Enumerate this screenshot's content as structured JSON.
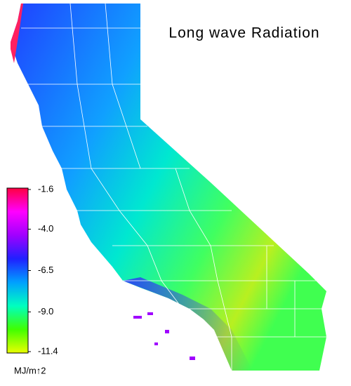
{
  "title": "Long wave Radiation",
  "colorbar": {
    "lim": [
      -11.4,
      -1.6
    ],
    "ticks": [
      -1.6,
      {
        "value": -4,
        "label": "-4.0"
      },
      -6.5,
      {
        "value": -9,
        "label": "-9.0"
      },
      -11.4
    ],
    "colors": [
      "#e8ff00",
      "#40ff00",
      "#00ffc0",
      "#00a0ff",
      "#2020ff",
      "#a000ff",
      "#ff00ff",
      "#ff0040"
    ],
    "unit": "MJ/m↑2"
  }
}
